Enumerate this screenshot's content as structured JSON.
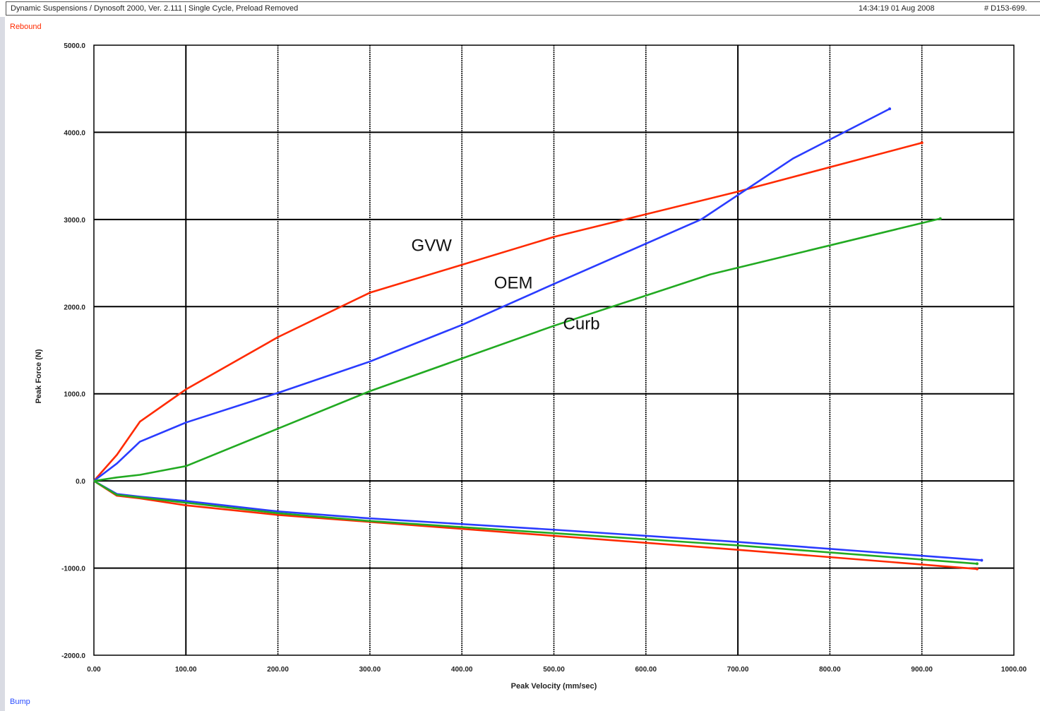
{
  "header": {
    "title": "Dynamic Suspensions / Dynosoft 2000, Ver. 2.111 |   Single Cycle, Preload Removed",
    "timestamp": "14:34:19  01 Aug 2008",
    "test_id": "# D153-699."
  },
  "labels": {
    "rebound": "Rebound",
    "bump": "Bump"
  },
  "chart_data": {
    "type": "line",
    "xlabel": "Peak Velocity (mm/sec)",
    "ylabel": "Peak Force (N)",
    "xlim": [
      0,
      1000
    ],
    "ylim": [
      -2000,
      5000
    ],
    "x_ticks": [
      "0.00",
      "100.00",
      "200.00",
      "300.00",
      "400.00",
      "500.00",
      "600.00",
      "700.00",
      "800.00",
      "900.00",
      "1000.00"
    ],
    "y_ticks": [
      "5000.0",
      "4000.0",
      "3000.0",
      "2000.0",
      "1000.0",
      "0.0",
      "-1000.0",
      "-2000.0"
    ],
    "grid": true,
    "series": [
      {
        "color": "#ff2a00",
        "rebound": [
          [
            0,
            0
          ],
          [
            25,
            300
          ],
          [
            50,
            680
          ],
          [
            100,
            1050
          ],
          [
            200,
            1650
          ],
          [
            300,
            2160
          ],
          [
            500,
            2800
          ],
          [
            700,
            3320
          ],
          [
            900,
            3880
          ]
        ],
        "bump": [
          [
            0,
            0
          ],
          [
            25,
            -170
          ],
          [
            50,
            -200
          ],
          [
            100,
            -280
          ],
          [
            200,
            -390
          ],
          [
            300,
            -470
          ],
          [
            500,
            -630
          ],
          [
            700,
            -790
          ],
          [
            960,
            -1010
          ]
        ]
      },
      {
        "color": "#2a3cff",
        "rebound": [
          [
            0,
            0
          ],
          [
            25,
            200
          ],
          [
            50,
            450
          ],
          [
            100,
            670
          ],
          [
            200,
            1010
          ],
          [
            300,
            1370
          ],
          [
            400,
            1790
          ],
          [
            500,
            2260
          ],
          [
            660,
            3000
          ],
          [
            760,
            3700
          ],
          [
            865,
            4270
          ]
        ],
        "bump": [
          [
            0,
            0
          ],
          [
            25,
            -150
          ],
          [
            50,
            -180
          ],
          [
            100,
            -230
          ],
          [
            200,
            -350
          ],
          [
            300,
            -430
          ],
          [
            500,
            -560
          ],
          [
            700,
            -700
          ],
          [
            965,
            -910
          ]
        ]
      },
      {
        "color": "#22aa22",
        "rebound": [
          [
            0,
            0
          ],
          [
            25,
            40
          ],
          [
            50,
            70
          ],
          [
            100,
            170
          ],
          [
            200,
            600
          ],
          [
            300,
            1030
          ],
          [
            500,
            1780
          ],
          [
            670,
            2370
          ],
          [
            920,
            3010
          ]
        ],
        "bump": [
          [
            0,
            0
          ],
          [
            25,
            -160
          ],
          [
            50,
            -190
          ],
          [
            100,
            -250
          ],
          [
            200,
            -370
          ],
          [
            300,
            -460
          ],
          [
            500,
            -600
          ],
          [
            700,
            -740
          ],
          [
            960,
            -950
          ]
        ]
      }
    ],
    "annotations": [
      {
        "text": "GVW",
        "x": 345,
        "y": 2640
      },
      {
        "text": "OEM",
        "x": 435,
        "y": 2210
      },
      {
        "text": "Curb",
        "x": 510,
        "y": 1740
      }
    ]
  }
}
